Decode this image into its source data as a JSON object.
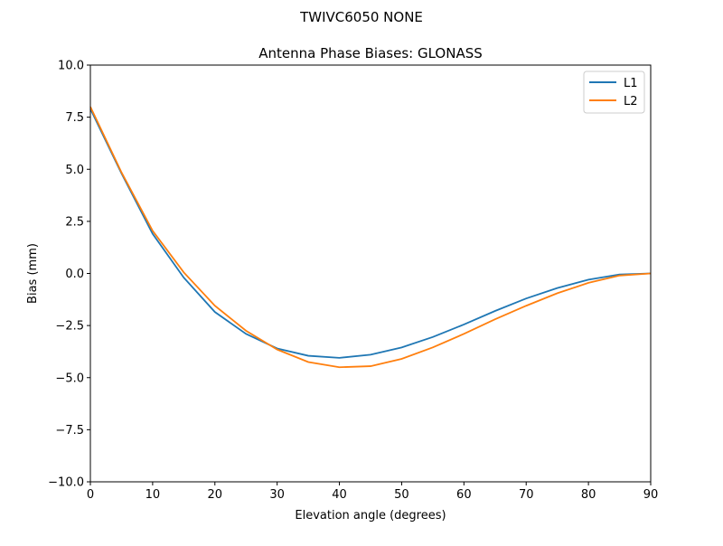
{
  "suptitle": "TWIVC6050       NONE",
  "chart_data": {
    "type": "line",
    "title": "Antenna Phase Biases: GLONASS",
    "xlabel": "Elevation angle (degrees)",
    "ylabel": "Bias (mm)",
    "xlim": [
      0,
      90
    ],
    "ylim": [
      -10,
      10
    ],
    "xticks": [
      0,
      10,
      20,
      30,
      40,
      50,
      60,
      70,
      80,
      90
    ],
    "xtick_labels": [
      "0",
      "10",
      "20",
      "30",
      "40",
      "50",
      "60",
      "70",
      "80",
      "90"
    ],
    "yticks": [
      -10,
      -7.5,
      -5,
      -2.5,
      0,
      2.5,
      5,
      7.5,
      10
    ],
    "ytick_labels": [
      "−10.0",
      "−7.5",
      "−5.0",
      "−2.5",
      "0.0",
      "2.5",
      "5.0",
      "7.5",
      "10.0"
    ],
    "grid": false,
    "legend": "upper-right",
    "x": [
      0,
      5,
      10,
      15,
      20,
      25,
      30,
      35,
      40,
      45,
      50,
      55,
      60,
      65,
      70,
      75,
      80,
      85,
      90
    ],
    "series": [
      {
        "name": "L1",
        "color": "#1f77b4",
        "values": [
          7.9,
          4.8,
          1.9,
          -0.2,
          -1.85,
          -2.9,
          -3.6,
          -3.95,
          -4.05,
          -3.9,
          -3.55,
          -3.05,
          -2.45,
          -1.8,
          -1.2,
          -0.7,
          -0.3,
          -0.05,
          0.0
        ]
      },
      {
        "name": "L2",
        "color": "#ff7f0e",
        "values": [
          8.0,
          4.85,
          2.05,
          0.05,
          -1.55,
          -2.75,
          -3.65,
          -4.25,
          -4.5,
          -4.45,
          -4.1,
          -3.55,
          -2.9,
          -2.2,
          -1.55,
          -0.95,
          -0.45,
          -0.1,
          0.0
        ]
      }
    ]
  }
}
